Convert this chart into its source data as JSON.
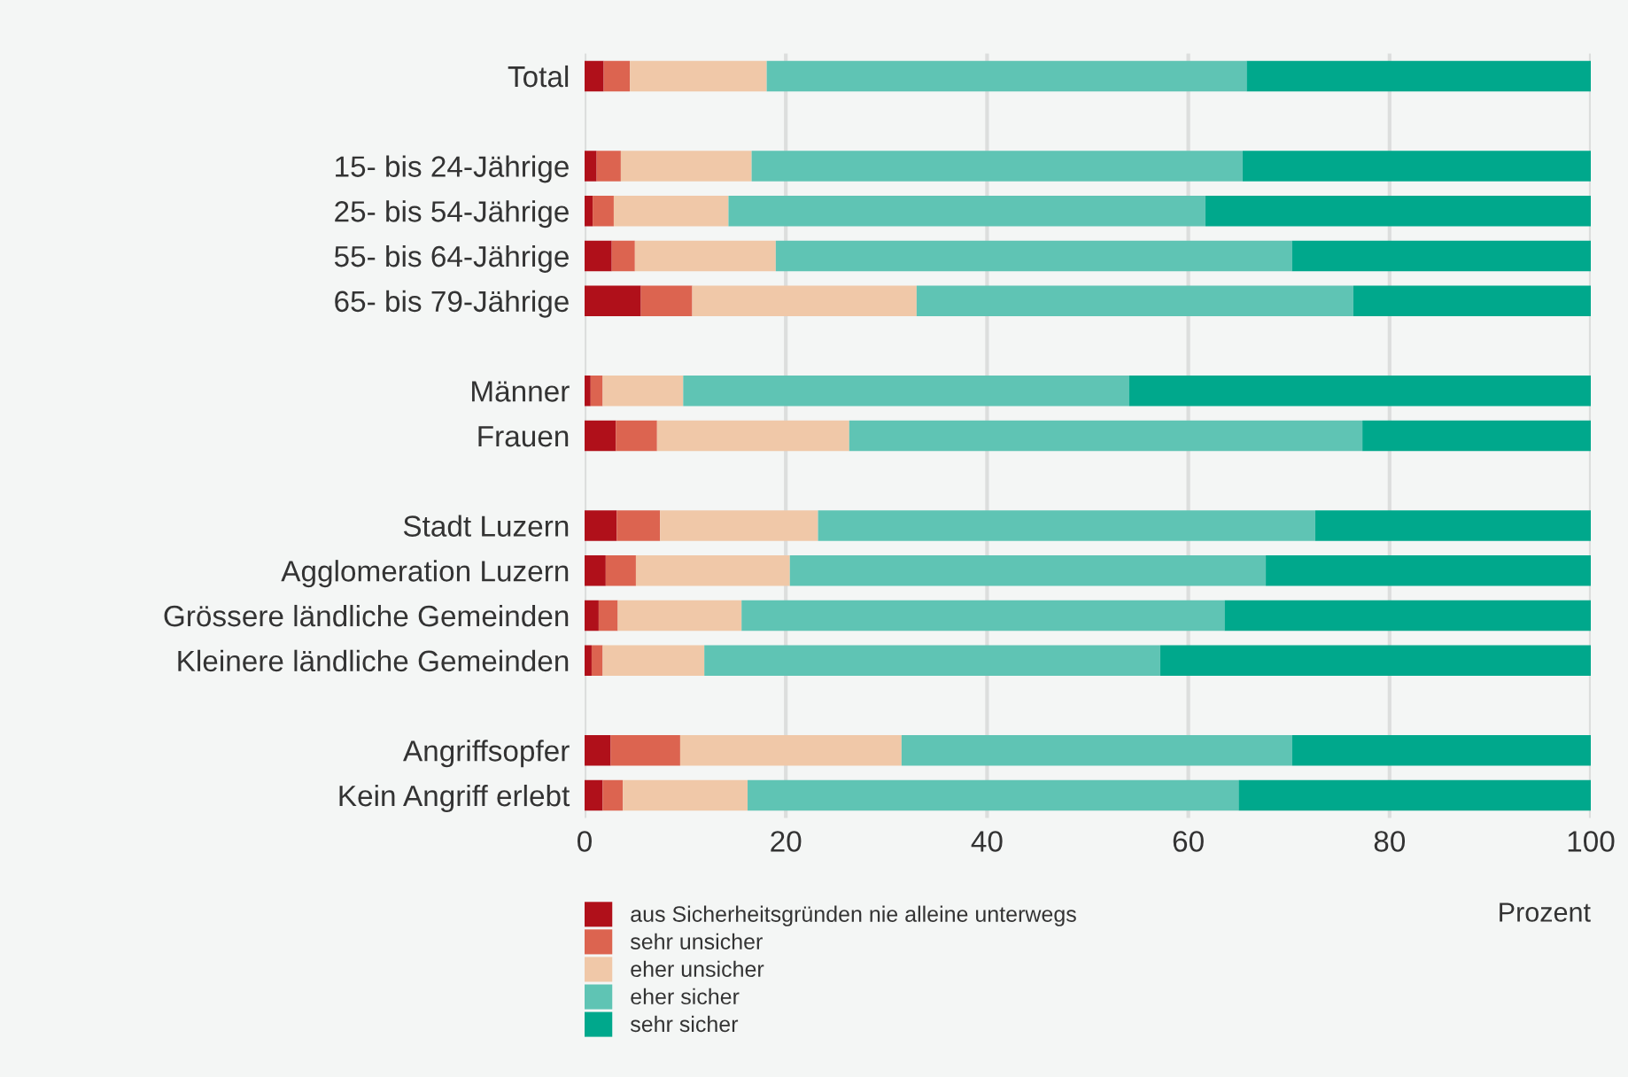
{
  "chart_data": {
    "type": "bar",
    "orientation": "horizontal",
    "stacked": true,
    "categories": [
      "Total",
      null,
      "15- bis 24-Jährige",
      "25- bis 54-Jährige",
      "55- bis 64-Jährige",
      "65- bis 79-Jährige",
      null,
      "Männer",
      "Frauen",
      null,
      "Stadt Luzern",
      "Agglomeration Luzern",
      "Grössere ländliche Gemeinden",
      "Kleinere ländliche Gemeinden",
      null,
      "Angriffsopfer",
      "Kein Angriff erlebt"
    ],
    "series": [
      {
        "name": "aus Sicherheitsgründen nie alleine unterwegs",
        "color": "#b0101a",
        "values": [
          1.9,
          null,
          1.2,
          0.8,
          2.7,
          5.6,
          null,
          0.6,
          3.1,
          null,
          3.2,
          2.1,
          1.4,
          0.7,
          null,
          2.6,
          1.8
        ]
      },
      {
        "name": "sehr unsicher",
        "color": "#dc6450",
        "values": [
          2.6,
          null,
          2.4,
          2.1,
          2.3,
          5.1,
          null,
          1.2,
          4.1,
          null,
          4.3,
          3.0,
          1.9,
          1.1,
          null,
          6.9,
          2.0
        ]
      },
      {
        "name": "eher unsicher",
        "color": "#f0c8a8",
        "values": [
          13.6,
          null,
          13.0,
          11.4,
          14.0,
          22.3,
          null,
          8.0,
          19.1,
          null,
          15.7,
          15.3,
          12.3,
          10.1,
          null,
          22.0,
          12.4
        ]
      },
      {
        "name": "eher sicher",
        "color": "#5fc4b4",
        "values": [
          47.7,
          null,
          48.8,
          47.4,
          51.3,
          43.4,
          null,
          44.3,
          51.0,
          null,
          49.4,
          47.3,
          48.0,
          45.3,
          null,
          38.8,
          48.8
        ]
      },
      {
        "name": "sehr sicher",
        "color": "#00a88c",
        "values": [
          34.2,
          null,
          34.6,
          38.3,
          29.7,
          23.6,
          null,
          45.9,
          22.7,
          null,
          27.4,
          32.3,
          36.4,
          42.8,
          null,
          29.7,
          35.0
        ]
      }
    ],
    "xlim": [
      0,
      100
    ],
    "xticks": [
      0,
      20,
      40,
      60,
      80,
      100
    ],
    "xlabel": "Prozent",
    "grid": "x",
    "legend": "bottom"
  }
}
